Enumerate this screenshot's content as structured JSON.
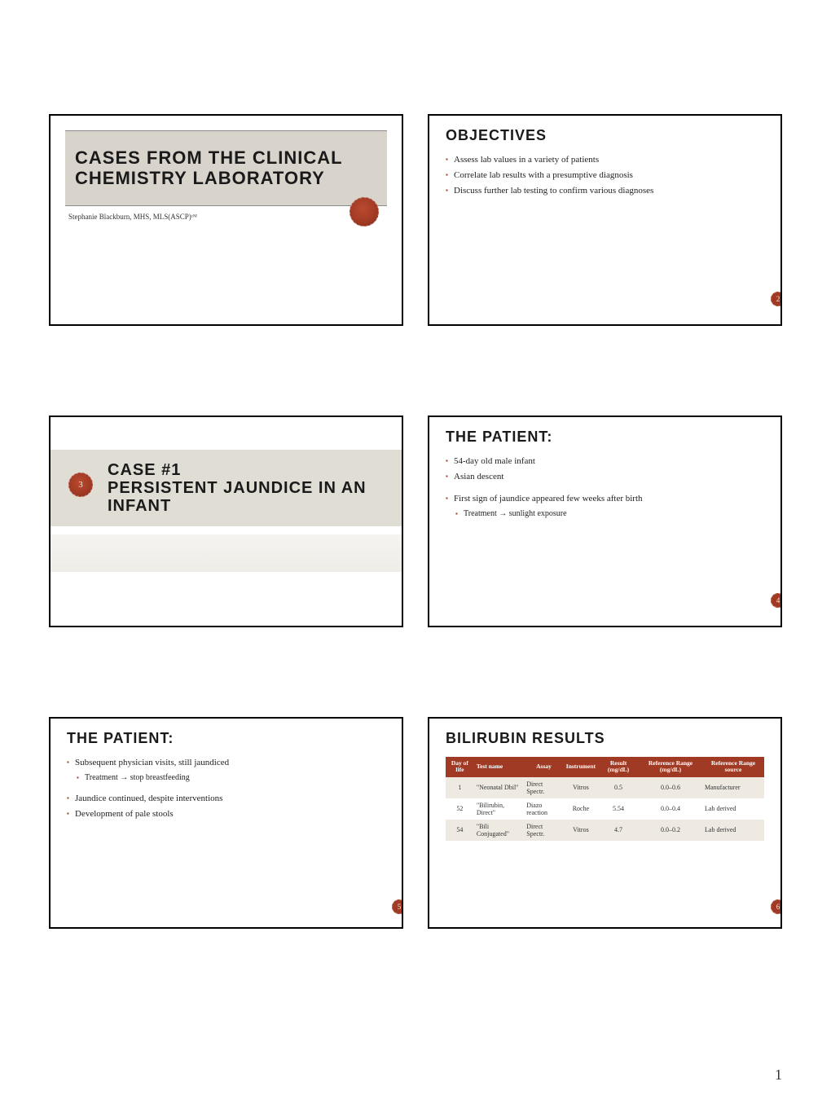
{
  "page_number": "1",
  "accent_color": "#a13a24",
  "band_bg": "#d8d4cc",
  "slides": {
    "s1": {
      "title_line1": "CASES FROM THE CLINICAL",
      "title_line2": "CHEMISTRY LABORATORY",
      "author": "Stephanie Blackburn, MHS, MLS(ASCP)ᶜᴹ"
    },
    "s2": {
      "heading": "OBJECTIVES",
      "items": [
        "Assess lab values in a variety of patients",
        "Correlate lab results with a presumptive diagnosis",
        "Discuss further lab testing to confirm various diagnoses"
      ],
      "badge": "2"
    },
    "s3": {
      "case_line1": "CASE #1",
      "case_line2": "PERSISTENT JAUNDICE IN AN",
      "case_line3": "INFANT",
      "seal_num": "3"
    },
    "s4": {
      "heading": "THE PATIENT:",
      "items": [
        {
          "text": "54-day old male infant",
          "sub": false,
          "spacer": false
        },
        {
          "text": "Asian descent",
          "sub": false,
          "spacer": false
        },
        {
          "text": "First sign of jaundice appeared few weeks after birth",
          "sub": false,
          "spacer": true
        },
        {
          "text": "Treatment → sunlight exposure",
          "sub": true,
          "spacer": false
        }
      ],
      "badge": "4"
    },
    "s5": {
      "heading": "THE PATIENT:",
      "items": [
        {
          "text": "Subsequent physician visits, still jaundiced",
          "sub": false,
          "spacer": false
        },
        {
          "text": "Treatment → stop breastfeeding",
          "sub": true,
          "spacer": false
        },
        {
          "text": "Jaundice continued, despite interventions",
          "sub": false,
          "spacer": true
        },
        {
          "text": "Development of pale stools",
          "sub": false,
          "spacer": false
        }
      ],
      "badge": "5"
    },
    "s6": {
      "heading": "BILIRUBIN RESULTS",
      "columns": [
        "Day of life",
        "Test name",
        "Assay",
        "Instrument",
        "Result (mg/dL)",
        "Reference Range (mg/dL)",
        "Reference Range source"
      ],
      "rows": [
        [
          "1",
          "\"Neonatal Dbil\"",
          "Direct Spectr.",
          "Vitros",
          "0.5",
          "0.0–0.6",
          "Manufacturer"
        ],
        [
          "52",
          "\"Bilirubin, Direct\"",
          "Diazo reaction",
          "Roche",
          "5.54",
          "0.0–0.4",
          "Lab derived"
        ],
        [
          "54",
          "\"Bili Conjugated\"",
          "Direct Spectr.",
          "Vitros",
          "4.7",
          "0.0–0.2",
          "Lab derived"
        ]
      ],
      "badge": "6"
    }
  }
}
